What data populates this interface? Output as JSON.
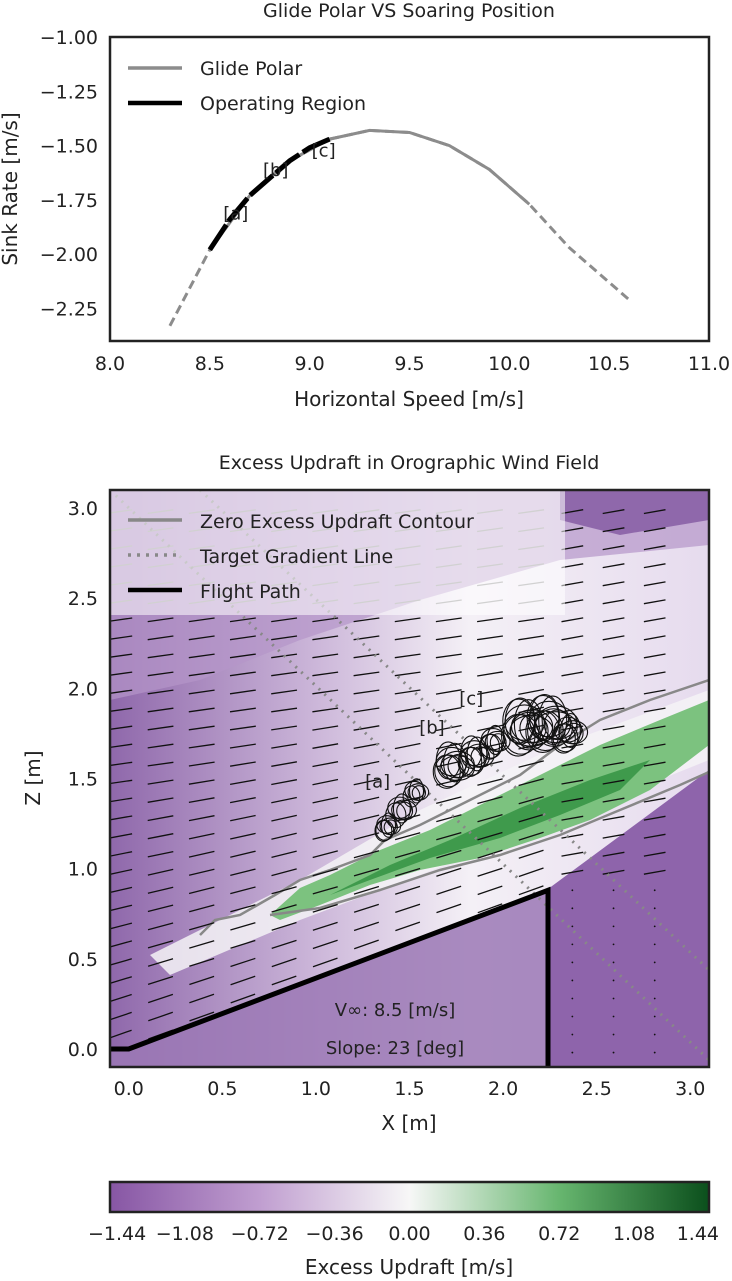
{
  "chart_data": [
    {
      "type": "line",
      "title": "Glide Polar VS Soaring Position",
      "xlabel": "Horizontal Speed [m/s]",
      "ylabel": "Sink Rate [m/s]",
      "xlim": [
        8.0,
        11.0
      ],
      "ylim": [
        -2.4,
        -1.0
      ],
      "x_ticks": [
        "8.0",
        "8.5",
        "9.0",
        "9.5",
        "10.0",
        "10.5",
        "11.0"
      ],
      "y_ticks": [
        "−1.00",
        "−1.25",
        "−1.50",
        "−1.75",
        "−2.00",
        "−2.25"
      ],
      "grid": false,
      "legend_position": "top-left",
      "series": [
        {
          "name": "Glide Polar",
          "color": "#8c8c8c",
          "x": [
            8.3,
            8.5,
            8.7,
            8.9,
            9.1,
            9.3,
            9.5,
            9.7,
            9.9,
            10.1,
            10.3,
            10.5,
            10.6
          ],
          "y": [
            -2.33,
            -1.98,
            -1.73,
            -1.57,
            -1.47,
            -1.43,
            -1.44,
            -1.5,
            -1.61,
            -1.77,
            -1.97,
            -2.13,
            -2.21
          ]
        },
        {
          "name": "Operating Region",
          "color": "#000000",
          "x": [
            8.5,
            8.6,
            8.7,
            8.8,
            8.9,
            9.0,
            9.1
          ],
          "y": [
            -1.98,
            -1.84,
            -1.73,
            -1.65,
            -1.57,
            -1.51,
            -1.47
          ]
        }
      ],
      "annotations": [
        {
          "text": "[a]",
          "x": 8.63,
          "y": -1.84
        },
        {
          "text": "[b]",
          "x": 8.83,
          "y": -1.64
        },
        {
          "text": "[c]",
          "x": 9.07,
          "y": -1.55
        }
      ]
    },
    {
      "type": "heatmap",
      "title": "Excess Updraft in Orographic Wind Field",
      "xlabel": "X [m]",
      "ylabel": "Z [m]",
      "xlim": [
        -0.1,
        3.1
      ],
      "ylim": [
        -0.1,
        3.1
      ],
      "x_ticks": [
        "0.0",
        "0.5",
        "1.0",
        "1.5",
        "2.0",
        "2.5",
        "3.0"
      ],
      "y_ticks": [
        "0.0",
        "0.5",
        "1.0",
        "1.5",
        "2.0",
        "2.5",
        "3.0"
      ],
      "legend_position": "top-left",
      "legend": [
        "Zero Excess Updraft Contour",
        "Target Gradient Line",
        "Flight Path"
      ],
      "hill": {
        "x": [
          -0.1,
          0.0,
          2.24,
          2.24,
          2.24
        ],
        "z": [
          0.0,
          0.0,
          0.88,
          0.88,
          -0.1
        ]
      },
      "annotations": [
        {
          "text": "[a]",
          "x": 1.33,
          "y": 1.45
        },
        {
          "text": "[b]",
          "x": 1.62,
          "y": 1.75
        },
        {
          "text": "[c]",
          "x": 1.83,
          "y": 1.91
        }
      ],
      "info_text": [
        "V∞: 8.5 [m/s]",
        "Slope: 23 [deg]"
      ],
      "colorbar": {
        "label": "Excess Updraft [m/s]",
        "ticks": [
          "−1.44",
          "−1.08",
          "−0.72",
          "−0.36",
          "0.00",
          "0.36",
          "0.72",
          "1.08",
          "1.44"
        ],
        "min": -1.44,
        "max": 1.44,
        "cmap_low": "#7b4c9c",
        "cmap_mid": "#f7f7f7",
        "cmap_high": "#0c5a1f"
      }
    }
  ]
}
